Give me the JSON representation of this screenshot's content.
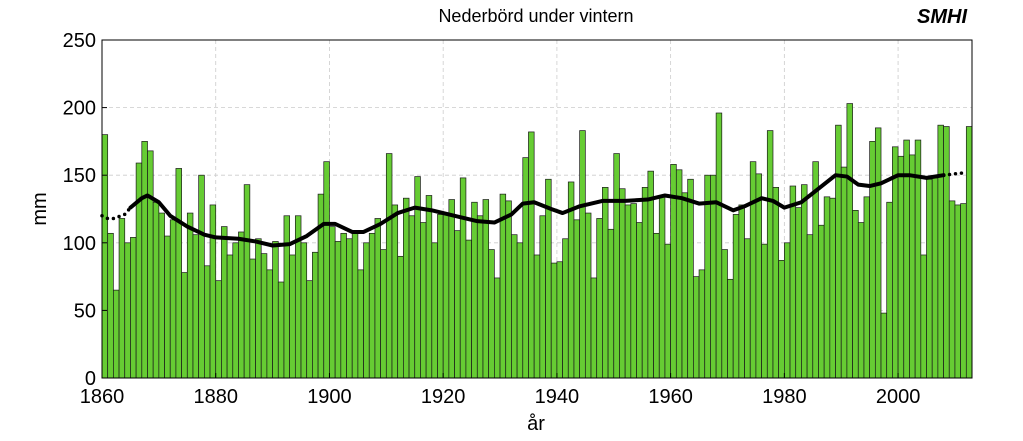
{
  "chart_data": {
    "type": "bar",
    "title": "Nederbörd under vintern",
    "logo": "SMHI",
    "x_label": "år",
    "y_label": "mm",
    "color": "#66cc33",
    "grid": true,
    "xlim": [
      1860,
      2013
    ],
    "xticks": [
      1860,
      1880,
      1900,
      1920,
      1940,
      1960,
      1980,
      2000
    ],
    "ylim": [
      0,
      250
    ],
    "yticks": [
      0,
      50,
      100,
      150,
      200,
      250
    ],
    "x": [
      1860,
      1861,
      1862,
      1863,
      1864,
      1865,
      1866,
      1867,
      1868,
      1869,
      1870,
      1871,
      1872,
      1873,
      1874,
      1875,
      1876,
      1877,
      1878,
      1879,
      1880,
      1881,
      1882,
      1883,
      1884,
      1885,
      1886,
      1887,
      1888,
      1889,
      1890,
      1891,
      1892,
      1893,
      1894,
      1895,
      1896,
      1897,
      1898,
      1899,
      1900,
      1901,
      1902,
      1903,
      1904,
      1905,
      1906,
      1907,
      1908,
      1909,
      1910,
      1911,
      1912,
      1913,
      1914,
      1915,
      1916,
      1917,
      1918,
      1919,
      1920,
      1921,
      1922,
      1923,
      1924,
      1925,
      1926,
      1927,
      1928,
      1929,
      1930,
      1931,
      1932,
      1933,
      1934,
      1935,
      1936,
      1937,
      1938,
      1939,
      1940,
      1941,
      1942,
      1943,
      1944,
      1945,
      1946,
      1947,
      1948,
      1949,
      1950,
      1951,
      1952,
      1953,
      1954,
      1955,
      1956,
      1957,
      1958,
      1959,
      1960,
      1961,
      1962,
      1963,
      1964,
      1965,
      1966,
      1967,
      1968,
      1969,
      1970,
      1971,
      1972,
      1973,
      1974,
      1975,
      1976,
      1977,
      1978,
      1979,
      1980,
      1981,
      1982,
      1983,
      1984,
      1985,
      1986,
      1987,
      1988,
      1989,
      1990,
      1991,
      1992,
      1993,
      1994,
      1995,
      1996,
      1997,
      1998,
      1999,
      2000,
      2001,
      2002,
      2003,
      2004,
      2005,
      2006,
      2007,
      2008,
      2009,
      2010,
      2011,
      2012
    ],
    "values": [
      180,
      107,
      65,
      118,
      100,
      104,
      159,
      175,
      168,
      130,
      122,
      105,
      117,
      155,
      78,
      122,
      106,
      150,
      83,
      128,
      72,
      112,
      91,
      100,
      108,
      143,
      88,
      103,
      92,
      80,
      101,
      71,
      120,
      91,
      120,
      100,
      72,
      93,
      136,
      160,
      112,
      101,
      107,
      103,
      108,
      80,
      100,
      107,
      118,
      95,
      166,
      128,
      90,
      133,
      120,
      149,
      115,
      135,
      100,
      121,
      121,
      132,
      109,
      148,
      102,
      130,
      120,
      132,
      95,
      74,
      136,
      131,
      106,
      100,
      163,
      182,
      91,
      120,
      147,
      85,
      86,
      103,
      145,
      117,
      183,
      122,
      74,
      118,
      141,
      110,
      166,
      140,
      128,
      129,
      115,
      141,
      153,
      107,
      134,
      99,
      158,
      154,
      137,
      147,
      75,
      80,
      150,
      150,
      196,
      95,
      73,
      121,
      128,
      103,
      160,
      151,
      99,
      183,
      141,
      87,
      100,
      142,
      126,
      143,
      106,
      160,
      113,
      134,
      133,
      187,
      156,
      203,
      124,
      115,
      134,
      175,
      185,
      48,
      130,
      171,
      164,
      176,
      165,
      176,
      91,
      147,
      148,
      187,
      186,
      131,
      128,
      129,
      186
    ],
    "lines": [
      {
        "style": "solid",
        "color": "#000000",
        "x": [
          1865,
          1867,
          1868,
          1870,
          1872,
          1875,
          1878,
          1880,
          1884,
          1887,
          1890,
          1893,
          1896,
          1899,
          1901,
          1904,
          1906,
          1909,
          1912,
          1915,
          1918,
          1922,
          1926,
          1929,
          1932,
          1934,
          1936,
          1939,
          1941,
          1944,
          1948,
          1952,
          1956,
          1959,
          1962,
          1965,
          1968,
          1971,
          1973,
          1976,
          1978,
          1980,
          1983,
          1986,
          1989,
          1991,
          1993,
          1995,
          1997,
          2000,
          2002,
          2005,
          2008
        ],
        "values": [
          126,
          133,
          135,
          130,
          120,
          112,
          106,
          104,
          103,
          101,
          98,
          99,
          105,
          114,
          114,
          108,
          108,
          114,
          122,
          126,
          124,
          120,
          116,
          115,
          121,
          129,
          130,
          125,
          122,
          127,
          131,
          131,
          132,
          135,
          133,
          129,
          130,
          124,
          127,
          133,
          131,
          126,
          130,
          140,
          150,
          149,
          143,
          142,
          144,
          150,
          150,
          148,
          150
        ]
      },
      {
        "style": "dotted",
        "color": "#000000",
        "x": [
          1860,
          1861,
          1862,
          1864,
          1865
        ],
        "values": [
          120,
          118,
          118,
          121,
          126
        ]
      },
      {
        "style": "dotted",
        "color": "#000000",
        "x": [
          2008,
          2010,
          2012
        ],
        "values": [
          150,
          151,
          152
        ]
      }
    ]
  }
}
